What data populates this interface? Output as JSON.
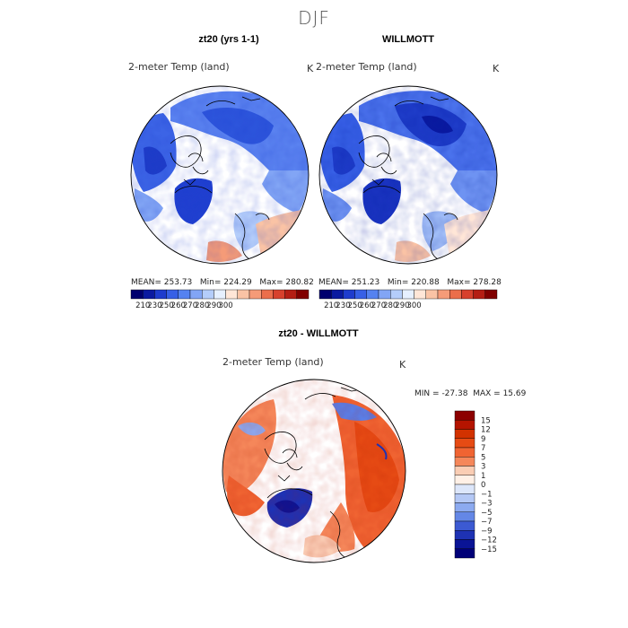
{
  "figure": {
    "season": "DJF"
  },
  "panels": [
    {
      "title": "zt20 (yrs 1-1)",
      "subtitle": "2-meter Temp (land)",
      "unit": "K",
      "stats": {
        "mean_label": "MEAN=",
        "mean": "253.73",
        "min_label": "Min=",
        "min": "224.29",
        "max_label": "Max=",
        "max": "280.82"
      }
    },
    {
      "title": "WILLMOTT",
      "subtitle": "2-meter Temp (land)",
      "unit": "K",
      "stats": {
        "mean_label": "MEAN=",
        "mean": "251.23",
        "min_label": "Min=",
        "min": "220.88",
        "max_label": "Max=",
        "max": "278.28"
      }
    },
    {
      "title": "zt20 - WILLMOTT",
      "subtitle": "2-meter Temp (land)",
      "unit": "K",
      "stats": {
        "min_label": "MIN =",
        "min": "-27.38",
        "max_label": "MAX =",
        "max": "15.69"
      }
    }
  ],
  "chart_data": [
    {
      "type": "heatmap",
      "projection": "north polar stereographic",
      "title": "zt20 (yrs 1-1)",
      "variable": "2-meter Temp (land)",
      "units": "K",
      "mean": 253.73,
      "min": 224.29,
      "max": 280.82,
      "colorbar": {
        "ticks": [
          "210",
          "230",
          "250",
          "260",
          "270",
          "280",
          "290",
          "300"
        ],
        "colors": [
          "#00006e",
          "#0a1aa0",
          "#1e3ccd",
          "#3760e6",
          "#5582f0",
          "#82a5f5",
          "#b4cdfa",
          "#e6f0ff",
          "#ffe6d7",
          "#fac3a5",
          "#f59b78",
          "#eb6e4b",
          "#d7412d",
          "#b41e14",
          "#800000"
        ]
      }
    },
    {
      "type": "heatmap",
      "projection": "north polar stereographic",
      "title": "WILLMOTT",
      "variable": "2-meter Temp (land)",
      "units": "K",
      "mean": 251.23,
      "min": 220.88,
      "max": 278.28,
      "colorbar": {
        "ticks": [
          "210",
          "230",
          "250",
          "260",
          "270",
          "280",
          "290",
          "300"
        ],
        "colors": [
          "#00006e",
          "#0a1aa0",
          "#1e3ccd",
          "#3760e6",
          "#5582f0",
          "#82a5f5",
          "#b4cdfa",
          "#e6f0ff",
          "#ffe6d7",
          "#fac3a5",
          "#f59b78",
          "#eb6e4b",
          "#d7412d",
          "#b41e14",
          "#800000"
        ]
      }
    },
    {
      "type": "heatmap",
      "projection": "north polar stereographic",
      "title": "zt20 - WILLMOTT",
      "variable": "2-meter Temp (land)",
      "units": "K",
      "min": -27.38,
      "max": 15.69,
      "colorbar": {
        "ticks": [
          "15",
          "12",
          "9",
          "7",
          "5",
          "3",
          "1",
          "0",
          "−1",
          "−3",
          "−5",
          "−7",
          "−9",
          "−12",
          "−15"
        ],
        "colors": [
          "#8c0000",
          "#b41400",
          "#d23200",
          "#e64b14",
          "#f06432",
          "#f5875a",
          "#facdb4",
          "#fff0e6",
          "#dce6fa",
          "#b4c8f5",
          "#8caaf0",
          "#6487e6",
          "#3c5ad2",
          "#1e32b4",
          "#0a1496",
          "#000078"
        ]
      }
    }
  ]
}
